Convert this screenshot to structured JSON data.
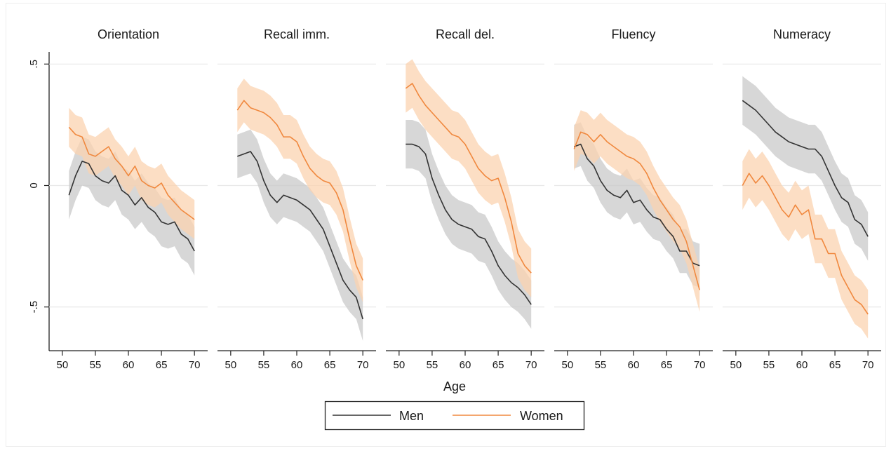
{
  "chart_data": {
    "type": "line",
    "xlabel": "Age",
    "ylim": [
      -0.68,
      0.55
    ],
    "xlim": [
      48,
      72
    ],
    "y_ticks": [
      {
        "value": -0.5,
        "label": "-.5"
      },
      {
        "value": 0,
        "label": "0"
      },
      {
        "value": 0.5,
        "label": ".5"
      }
    ],
    "x_ticks": [
      {
        "value": 50,
        "label": "50"
      },
      {
        "value": 55,
        "label": "55"
      },
      {
        "value": 60,
        "label": "60"
      },
      {
        "value": 65,
        "label": "65"
      },
      {
        "value": 70,
        "label": "70"
      }
    ],
    "grid": true,
    "confidence_bands": true,
    "legend": {
      "placement": "bottom",
      "entries": [
        "Men",
        "Women"
      ]
    },
    "colors": {
      "Men": "#333333",
      "Women": "#f0883e",
      "Men_band": "#c9c9c9",
      "Women_band": "#fbd3b0",
      "grid": "#e8e8e8"
    },
    "x": [
      51,
      52,
      53,
      54,
      55,
      56,
      57,
      58,
      59,
      60,
      61,
      62,
      63,
      64,
      65,
      66,
      67,
      68,
      69,
      70
    ],
    "panels": [
      {
        "title": "Orientation",
        "series": [
          {
            "name": "Men",
            "values": [
              -0.04,
              0.04,
              0.1,
              0.09,
              0.04,
              0.02,
              0.01,
              0.04,
              -0.02,
              -0.04,
              -0.08,
              -0.05,
              -0.09,
              -0.11,
              -0.15,
              -0.16,
              -0.15,
              -0.2,
              -0.22,
              -0.27
            ],
            "band_half_width": 0.1
          },
          {
            "name": "Women",
            "values": [
              0.24,
              0.21,
              0.2,
              0.13,
              0.12,
              0.14,
              0.16,
              0.11,
              0.08,
              0.04,
              0.08,
              0.02,
              0.0,
              -0.01,
              0.01,
              -0.04,
              -0.07,
              -0.1,
              -0.12,
              -0.14
            ],
            "band_half_width": 0.08
          }
        ]
      },
      {
        "title": "Recall imm.",
        "series": [
          {
            "name": "Men",
            "values": [
              0.12,
              0.13,
              0.14,
              0.1,
              0.02,
              -0.04,
              -0.07,
              -0.04,
              -0.05,
              -0.06,
              -0.08,
              -0.1,
              -0.14,
              -0.18,
              -0.25,
              -0.32,
              -0.39,
              -0.43,
              -0.46,
              -0.55
            ],
            "band_half_width": 0.09
          },
          {
            "name": "Women",
            "values": [
              0.31,
              0.35,
              0.32,
              0.31,
              0.3,
              0.28,
              0.25,
              0.2,
              0.2,
              0.18,
              0.12,
              0.07,
              0.04,
              0.02,
              0.01,
              -0.03,
              -0.1,
              -0.22,
              -0.33,
              -0.39
            ],
            "band_half_width": 0.09
          }
        ]
      },
      {
        "title": "Recall del.",
        "series": [
          {
            "name": "Men",
            "values": [
              0.17,
              0.17,
              0.16,
              0.13,
              0.03,
              -0.04,
              -0.1,
              -0.14,
              -0.16,
              -0.17,
              -0.18,
              -0.21,
              -0.22,
              -0.27,
              -0.33,
              -0.37,
              -0.4,
              -0.42,
              -0.45,
              -0.49
            ],
            "band_half_width": 0.1
          },
          {
            "name": "Women",
            "values": [
              0.4,
              0.42,
              0.37,
              0.33,
              0.3,
              0.27,
              0.24,
              0.21,
              0.2,
              0.17,
              0.12,
              0.07,
              0.04,
              0.02,
              0.03,
              -0.05,
              -0.15,
              -0.28,
              -0.33,
              -0.36
            ],
            "band_half_width": 0.1
          }
        ]
      },
      {
        "title": "Fluency",
        "series": [
          {
            "name": "Men",
            "values": [
              0.16,
              0.17,
              0.11,
              0.08,
              0.02,
              -0.02,
              -0.04,
              -0.05,
              -0.02,
              -0.07,
              -0.06,
              -0.1,
              -0.13,
              -0.14,
              -0.18,
              -0.21,
              -0.27,
              -0.27,
              -0.32,
              -0.33
            ],
            "band_half_width": 0.09
          },
          {
            "name": "Women",
            "values": [
              0.15,
              0.22,
              0.21,
              0.18,
              0.21,
              0.18,
              0.16,
              0.14,
              0.12,
              0.11,
              0.09,
              0.05,
              -0.01,
              -0.06,
              -0.1,
              -0.14,
              -0.17,
              -0.23,
              -0.33,
              -0.43
            ],
            "band_half_width": 0.09
          }
        ]
      },
      {
        "title": "Numeracy",
        "series": [
          {
            "name": "Men",
            "values": [
              0.35,
              0.33,
              0.31,
              0.28,
              0.25,
              0.22,
              0.2,
              0.18,
              0.17,
              0.16,
              0.15,
              0.15,
              0.12,
              0.06,
              0.0,
              -0.05,
              -0.07,
              -0.14,
              -0.16,
              -0.21
            ],
            "band_half_width": 0.1
          },
          {
            "name": "Women",
            "values": [
              0.0,
              0.05,
              0.01,
              0.04,
              0.0,
              -0.05,
              -0.1,
              -0.13,
              -0.08,
              -0.12,
              -0.1,
              -0.22,
              -0.22,
              -0.28,
              -0.28,
              -0.37,
              -0.42,
              -0.47,
              -0.49,
              -0.53
            ],
            "band_half_width": 0.1
          }
        ]
      }
    ]
  }
}
